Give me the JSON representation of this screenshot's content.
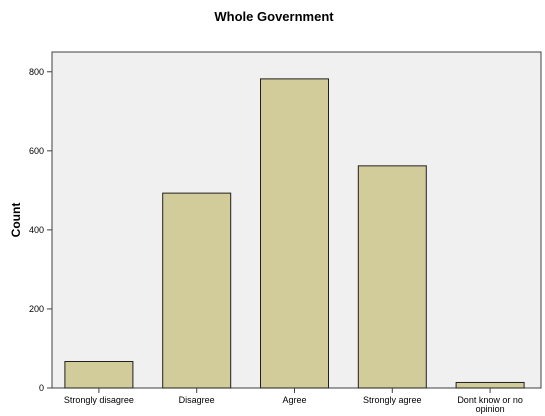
{
  "chart_data": {
    "type": "bar",
    "title": "Whole Government",
    "xlabel": "",
    "ylabel": "Count",
    "categories": [
      "Strongly disagree",
      "Disagree",
      "Agree",
      "Strongly agree",
      "Dont know or no opinion"
    ],
    "category_lines": [
      [
        "Strongly disagree"
      ],
      [
        "Disagree"
      ],
      [
        "Agree"
      ],
      [
        "Strongly agree"
      ],
      [
        "Dont know or no",
        "opinion"
      ]
    ],
    "values": [
      67,
      493,
      782,
      562,
      14
    ],
    "ylim": [
      0,
      850
    ],
    "yticks": [
      0,
      200,
      400,
      600,
      800
    ],
    "grid": false,
    "legend": "none",
    "colors": {
      "bar_fill": "#d2cc9b",
      "bar_stroke": "#202020",
      "plot_bg": "#f0f0f0",
      "axis": "#404040"
    }
  }
}
